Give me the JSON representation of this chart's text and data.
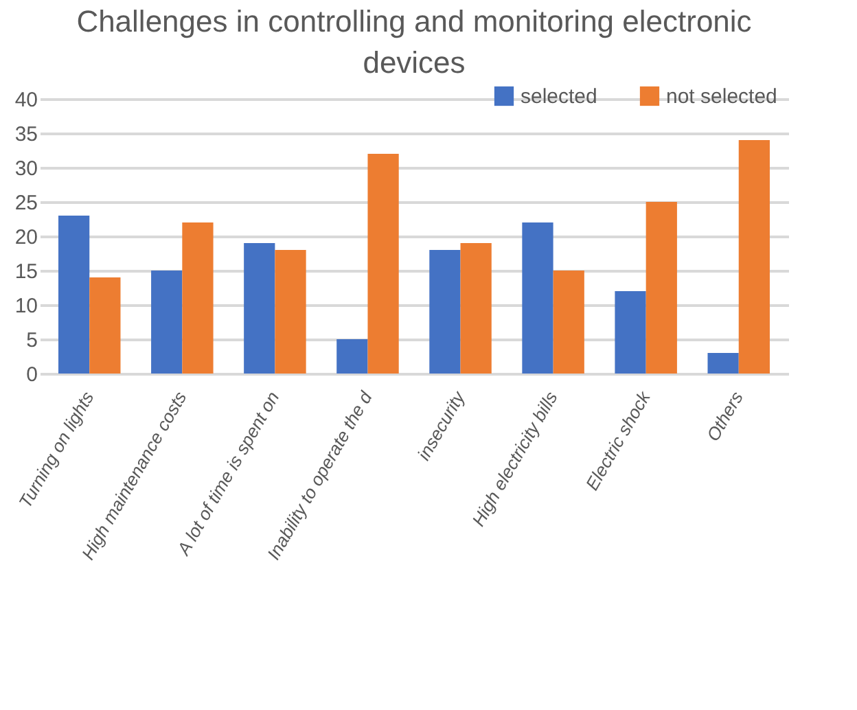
{
  "chart_data": {
    "type": "bar",
    "title": "Challenges in controlling and monitoring electronic devices",
    "categories": [
      "Turning on lights",
      "High maintenance costs",
      "A lot of time is spent on",
      "Inability to operate the d",
      "insecurity",
      "High electricity bills",
      "Electric shock",
      "Others"
    ],
    "series": [
      {
        "name": "selected",
        "color": "#4472c4",
        "values": [
          23,
          15,
          19,
          5,
          18,
          22,
          12,
          3
        ]
      },
      {
        "name": "not selected",
        "color": "#ed7d31",
        "values": [
          14,
          22,
          18,
          32,
          19,
          15,
          25,
          34
        ]
      }
    ],
    "ylim": [
      0,
      40
    ],
    "yticks": [
      0,
      5,
      10,
      15,
      20,
      25,
      30,
      35,
      40
    ],
    "grid": "y",
    "legend": "top right"
  }
}
